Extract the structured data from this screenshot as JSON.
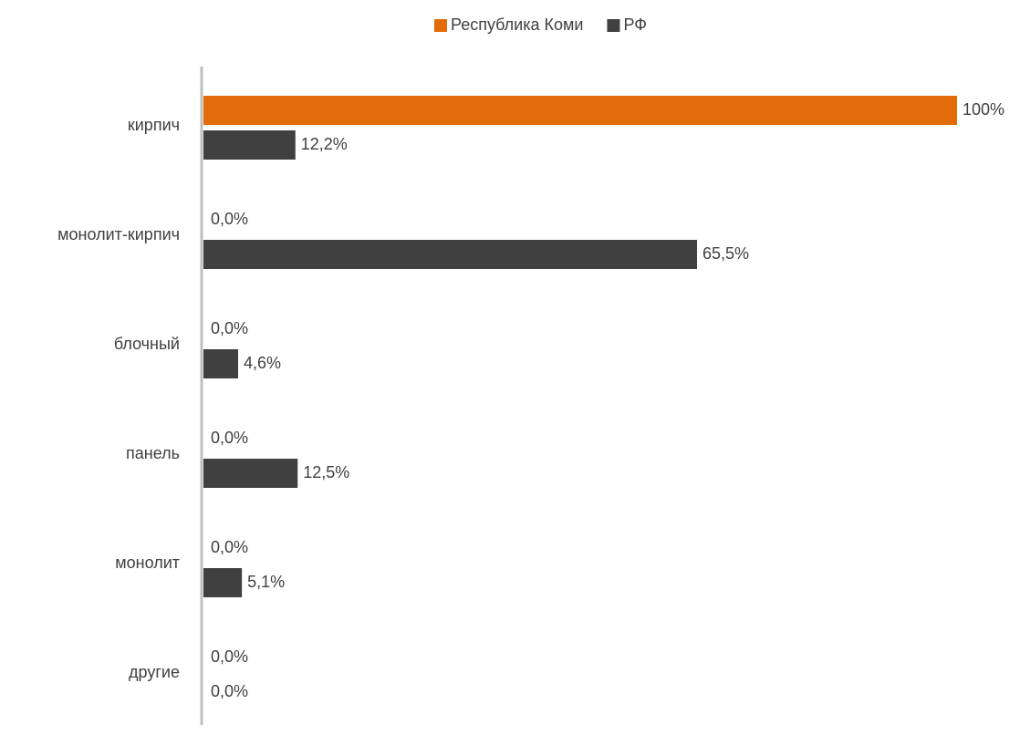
{
  "chart_data": {
    "type": "bar",
    "orientation": "horizontal",
    "categories": [
      "кирпич",
      "монолит-кирпич",
      "блочный",
      "панель",
      "монолит",
      "другие"
    ],
    "series": [
      {
        "name": "Республика Коми",
        "color": "#E36C0A",
        "values": [
          100,
          0.0,
          0.0,
          0.0,
          0.0,
          0.0
        ],
        "labels": [
          "100%",
          "0,0%",
          "0,0%",
          "0,0%",
          "0,0%",
          "0,0%"
        ]
      },
      {
        "name": "РФ",
        "color": "#404040",
        "values": [
          12.2,
          65.5,
          4.6,
          12.5,
          5.1,
          0.0
        ],
        "labels": [
          "12,2%",
          "65,5%",
          "4,6%",
          "12,5%",
          "5,1%",
          "0,0%"
        ]
      }
    ],
    "xlim": [
      0,
      100
    ],
    "legend_position": "top-center",
    "grid": false,
    "title": "",
    "xlabel": "",
    "ylabel": ""
  }
}
